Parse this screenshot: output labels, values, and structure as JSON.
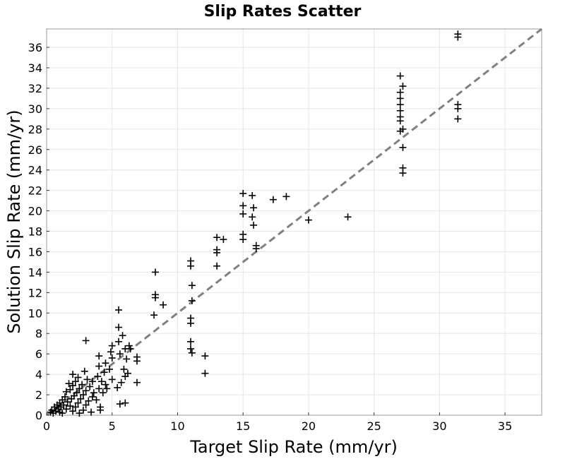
{
  "chart_data": {
    "type": "scatter",
    "title": "Slip Rates Scatter",
    "xlabel": "Target Slip Rate (mm/yr)",
    "ylabel": "Solution Slip Rate (mm/yr)",
    "xlim": [
      0,
      37.8
    ],
    "ylim": [
      0,
      37.8
    ],
    "xticks": [
      0,
      5,
      10,
      15,
      20,
      25,
      30,
      35
    ],
    "yticks": [
      0,
      2,
      4,
      6,
      8,
      10,
      12,
      14,
      16,
      18,
      20,
      22,
      24,
      26,
      28,
      30,
      32,
      34,
      36
    ],
    "grid": true,
    "marker": "+",
    "reference_line": {
      "style": "dashed",
      "color": "#808080",
      "from": [
        0,
        0
      ],
      "to": [
        37.8,
        37.8
      ]
    },
    "series": [
      {
        "color": "#000000",
        "points": [
          [
            0.3,
            0.3
          ],
          [
            0.4,
            0.5
          ],
          [
            0.5,
            0.2
          ],
          [
            0.6,
            0.8
          ],
          [
            0.7,
            0.4
          ],
          [
            0.8,
            1.0
          ],
          [
            0.9,
            0.6
          ],
          [
            1.0,
            0.3
          ],
          [
            1.0,
            1.2
          ],
          [
            1.1,
            0.8
          ],
          [
            1.2,
            1.5
          ],
          [
            1.2,
            0.2
          ],
          [
            1.3,
            1.0
          ],
          [
            1.4,
            1.8
          ],
          [
            1.5,
            0.6
          ],
          [
            1.5,
            2.3
          ],
          [
            1.6,
            1.3
          ],
          [
            1.7,
            3.1
          ],
          [
            1.8,
            0.9
          ],
          [
            1.8,
            2.5
          ],
          [
            1.9,
            1.6
          ],
          [
            2.0,
            0.4
          ],
          [
            2.0,
            2.9
          ],
          [
            2.0,
            4.0
          ],
          [
            2.1,
            1.9
          ],
          [
            2.2,
            3.3
          ],
          [
            2.2,
            0.8
          ],
          [
            2.3,
            2.2
          ],
          [
            2.4,
            1.2
          ],
          [
            2.4,
            3.7
          ],
          [
            2.5,
            0.2
          ],
          [
            2.5,
            2.6
          ],
          [
            2.6,
            1.6
          ],
          [
            2.7,
            3.0
          ],
          [
            2.8,
            0.5
          ],
          [
            2.8,
            2.0
          ],
          [
            2.9,
            4.3
          ],
          [
            3.0,
            1.0
          ],
          [
            3.0,
            2.4
          ],
          [
            3.0,
            7.3
          ],
          [
            3.1,
            3.5
          ],
          [
            3.2,
            1.4
          ],
          [
            3.3,
            2.8
          ],
          [
            3.4,
            0.3
          ],
          [
            3.5,
            1.8
          ],
          [
            3.5,
            3.3
          ],
          [
            3.6,
            2.2
          ],
          [
            3.8,
            1.5
          ],
          [
            3.9,
            3.8
          ],
          [
            4.0,
            2.6
          ],
          [
            4.0,
            4.8
          ],
          [
            4.0,
            5.8
          ],
          [
            4.1,
            0.5
          ],
          [
            4.1,
            0.8
          ],
          [
            4.2,
            3.3
          ],
          [
            4.3,
            2.2
          ],
          [
            4.4,
            4.2
          ],
          [
            4.5,
            3.0
          ],
          [
            4.5,
            5.1
          ],
          [
            4.6,
            2.6
          ],
          [
            4.8,
            4.5
          ],
          [
            4.9,
            6.2
          ],
          [
            5.0,
            3.5
          ],
          [
            5.0,
            5.6
          ],
          [
            5.0,
            6.8
          ],
          [
            5.4,
            2.7
          ],
          [
            5.5,
            10.3
          ],
          [
            5.5,
            8.6
          ],
          [
            5.5,
            7.2
          ],
          [
            5.6,
            6.0
          ],
          [
            5.6,
            1.1
          ],
          [
            5.7,
            3.2
          ],
          [
            5.8,
            7.8
          ],
          [
            5.9,
            4.5
          ],
          [
            6.0,
            6.5
          ],
          [
            6.0,
            3.8
          ],
          [
            6.0,
            1.2
          ],
          [
            6.1,
            5.5
          ],
          [
            6.2,
            4.1
          ],
          [
            6.3,
            6.8
          ],
          [
            6.4,
            6.5
          ],
          [
            6.9,
            3.2
          ],
          [
            6.9,
            5.3
          ],
          [
            6.9,
            5.7
          ],
          [
            8.2,
            9.8
          ],
          [
            8.3,
            11.8
          ],
          [
            8.3,
            11.5
          ],
          [
            8.3,
            14.0
          ],
          [
            8.9,
            10.8
          ],
          [
            11.0,
            15.1
          ],
          [
            11.0,
            14.6
          ],
          [
            11.1,
            12.7
          ],
          [
            11.1,
            11.2
          ],
          [
            11.0,
            9.5
          ],
          [
            11.0,
            9.0
          ],
          [
            11.0,
            7.2
          ],
          [
            11.0,
            6.5
          ],
          [
            11.1,
            6.1
          ],
          [
            12.1,
            5.8
          ],
          [
            12.1,
            4.1
          ],
          [
            13.0,
            17.4
          ],
          [
            13.0,
            16.2
          ],
          [
            13.0,
            15.9
          ],
          [
            13.0,
            14.6
          ],
          [
            13.5,
            17.2
          ],
          [
            15.0,
            21.7
          ],
          [
            15.0,
            20.5
          ],
          [
            15.0,
            19.7
          ],
          [
            15.0,
            17.7
          ],
          [
            15.0,
            17.2
          ],
          [
            15.7,
            21.5
          ],
          [
            15.8,
            20.3
          ],
          [
            15.7,
            19.4
          ],
          [
            15.8,
            18.6
          ],
          [
            16.0,
            16.6
          ],
          [
            16.0,
            16.3
          ],
          [
            17.3,
            21.1
          ],
          [
            18.3,
            21.4
          ],
          [
            20.0,
            19.1
          ],
          [
            23.0,
            19.4
          ],
          [
            27.0,
            33.2
          ],
          [
            27.2,
            32.2
          ],
          [
            27.0,
            31.6
          ],
          [
            27.0,
            31.0
          ],
          [
            27.0,
            30.4
          ],
          [
            27.0,
            29.8
          ],
          [
            27.0,
            29.2
          ],
          [
            27.0,
            28.8
          ],
          [
            27.2,
            28.0
          ],
          [
            27.0,
            27.8
          ],
          [
            27.2,
            26.2
          ],
          [
            27.2,
            24.2
          ],
          [
            27.2,
            23.7
          ],
          [
            31.4,
            37.3
          ],
          [
            31.4,
            37.0
          ],
          [
            31.4,
            30.4
          ],
          [
            31.4,
            30.0
          ],
          [
            31.4,
            29.0
          ]
        ]
      }
    ]
  }
}
